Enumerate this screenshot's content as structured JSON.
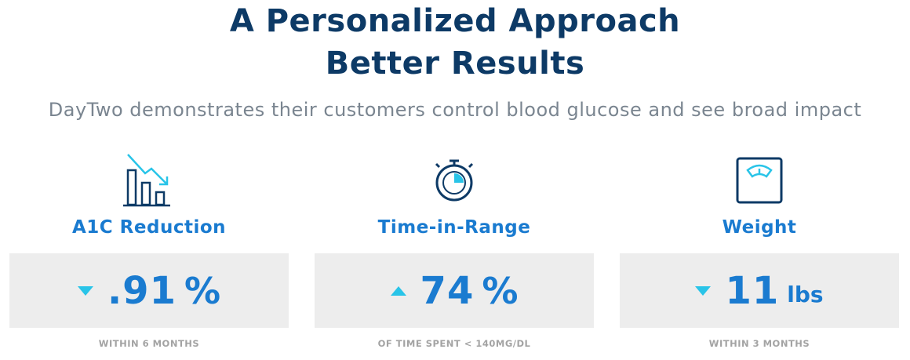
{
  "header": {
    "title_lines": [
      "A Personalized Approach",
      "Better Results"
    ],
    "subtitle": "DayTwo demonstrates their customers control blood glucose and see broad impact"
  },
  "stats": [
    {
      "label": "A1C Reduction",
      "value": ".91",
      "unit": "%",
      "note": "WITHIN 6 MONTHS"
    },
    {
      "label": "Time-in-Range",
      "value": "74",
      "unit": "%",
      "note": "OF TIME SPENT < 140MG/DL"
    },
    {
      "label": "Weight",
      "value": "11",
      "unit": "lbs",
      "note": "WITHIN 3 MONTHS"
    }
  ]
}
